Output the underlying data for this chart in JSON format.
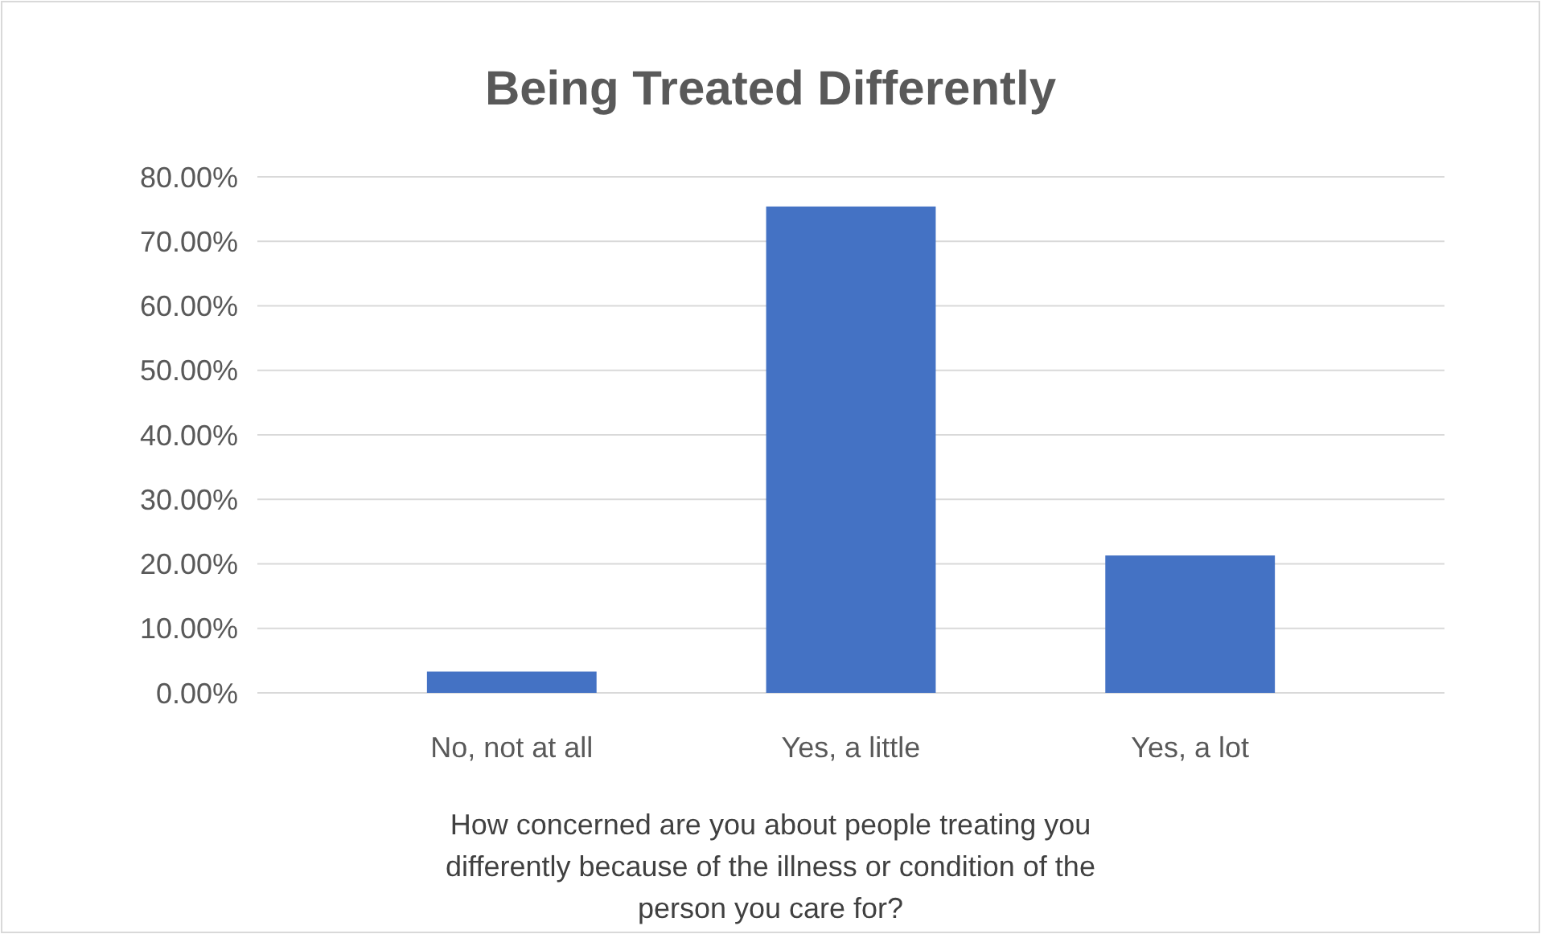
{
  "chart_data": {
    "type": "bar",
    "title": "Being Treated Differently",
    "xlabel": "How concerned are you about people treating you differently because of the illness or condition of the person you care for?",
    "categories": [
      "No, not at all",
      "Yes, a little",
      "Yes, a lot"
    ],
    "values": [
      3.3,
      75.4,
      21.3
    ],
    "color": "#4472c4",
    "ylim": [
      0,
      80
    ],
    "yticks": [
      {
        "value": 0,
        "label": "0.00%"
      },
      {
        "value": 10,
        "label": "10.00%"
      },
      {
        "value": 20,
        "label": "20.00%"
      },
      {
        "value": 30,
        "label": "30.00%"
      },
      {
        "value": 40,
        "label": "40.00%"
      },
      {
        "value": 50,
        "label": "50.00%"
      },
      {
        "value": 60,
        "label": "60.00%"
      },
      {
        "value": 70,
        "label": "70.00%"
      },
      {
        "value": 80,
        "label": "80.00%"
      }
    ],
    "grid": "y"
  }
}
